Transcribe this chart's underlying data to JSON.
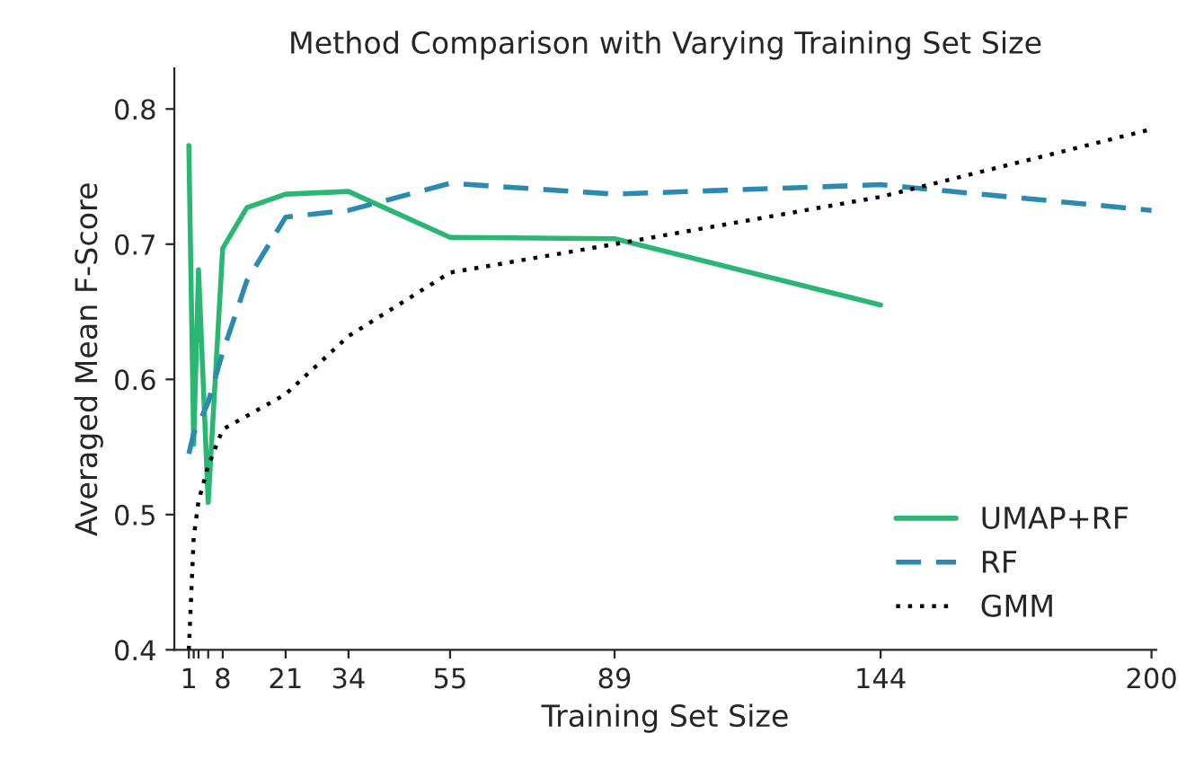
{
  "chart_data": {
    "type": "line",
    "title": "Method Comparison with Varying Training Set Size",
    "xlabel": "Training Set Size",
    "ylabel": "Averaged Mean F-Score",
    "series": [
      {
        "name": "UMAP+RF",
        "color": "#2ab673",
        "line_style": "solid",
        "x": [
          1,
          2,
          3,
          5,
          8,
          13,
          21,
          34,
          55,
          89,
          144
        ],
        "values": [
          0.773,
          0.552,
          0.681,
          0.509,
          0.697,
          0.727,
          0.737,
          0.739,
          0.705,
          0.704,
          0.655
        ]
      },
      {
        "name": "RF",
        "color": "#2a8ab0",
        "line_style": "dashed",
        "x": [
          1,
          2,
          3,
          5,
          8,
          13,
          21,
          34,
          55,
          89,
          144,
          200
        ],
        "values": [
          0.545,
          0.56,
          0.567,
          0.583,
          0.62,
          0.673,
          0.72,
          0.725,
          0.745,
          0.737,
          0.744,
          0.725
        ]
      },
      {
        "name": "GMM",
        "color": "#000000",
        "line_style": "dotted",
        "x": [
          1,
          2,
          3,
          5,
          8,
          13,
          21,
          34,
          55,
          89,
          144,
          200
        ],
        "values": [
          0.4,
          0.483,
          0.51,
          0.536,
          0.563,
          0.573,
          0.589,
          0.632,
          0.679,
          0.7,
          0.735,
          0.785
        ]
      }
    ],
    "xlim": [
      -2,
      201
    ],
    "xticks": [
      1,
      {
        "value": 2,
        "label": null
      },
      {
        "value": 3,
        "label": null
      },
      {
        "value": 5,
        "label": null
      },
      8,
      21,
      34,
      55,
      89,
      144,
      200
    ],
    "ylim": [
      0.4,
      0.83
    ],
    "yticks": [
      0.4,
      0.5,
      0.6,
      0.7,
      0.8
    ],
    "grid": false,
    "legend": "bottom right"
  }
}
